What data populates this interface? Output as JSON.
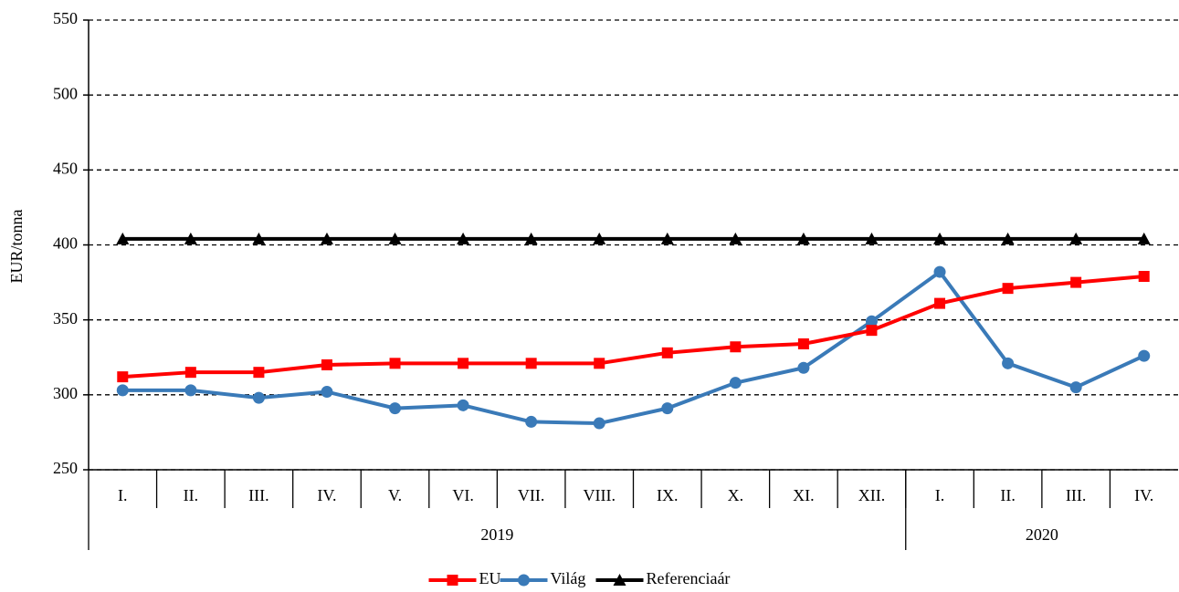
{
  "chart_data": {
    "type": "line",
    "y_label": "EUR/tonna",
    "categories": [
      "I.",
      "II.",
      "III.",
      "IV.",
      "V.",
      "VI.",
      "VII.",
      "VIII.",
      "IX.",
      "X.",
      "XI.",
      "XII.",
      "I.",
      "II.",
      "III.",
      "IV."
    ],
    "category_groups": [
      {
        "label": "2019",
        "size": 12
      },
      {
        "label": "2020",
        "size": 4
      }
    ],
    "series": [
      {
        "name": "EU",
        "color": "#ff0000",
        "marker": "square",
        "values": [
          312,
          315,
          315,
          320,
          321,
          321,
          321,
          321,
          328,
          332,
          334,
          343,
          361,
          371,
          375,
          379
        ]
      },
      {
        "name": "Világ",
        "color": "#3a7ab8",
        "marker": "circle",
        "values": [
          303,
          303,
          298,
          302,
          291,
          293,
          282,
          281,
          291,
          308,
          318,
          349,
          382,
          321,
          305,
          326
        ]
      },
      {
        "name": "Referenciaár",
        "color": "#000000",
        "marker": "triangle",
        "values": [
          404,
          404,
          404,
          404,
          404,
          404,
          404,
          404,
          404,
          404,
          404,
          404,
          404,
          404,
          404,
          404
        ]
      }
    ],
    "ylim": [
      250,
      550
    ],
    "yticks": [
      250,
      300,
      350,
      400,
      450,
      500,
      550
    ],
    "grid": true,
    "legend": "bottom"
  }
}
